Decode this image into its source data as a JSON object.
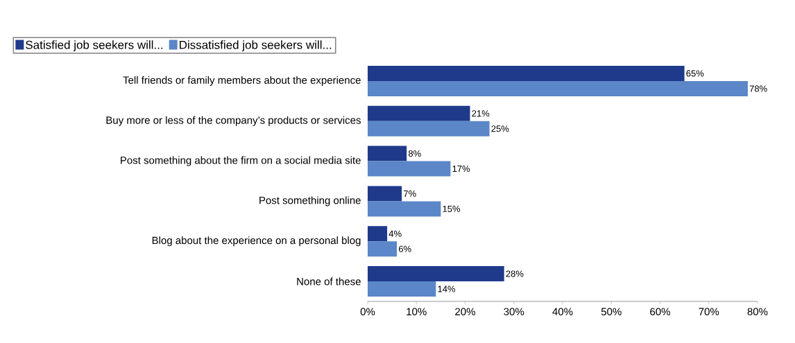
{
  "chart_data": {
    "type": "bar",
    "orientation": "horizontal",
    "legend": "top left",
    "categories": [
      "Tell friends or family members about the experience",
      "Buy more or less of the company’s products or services",
      "Post something about the firm on a social media site",
      "Post something online",
      "Blog about the experience on a personal blog",
      "None of these"
    ],
    "series": [
      {
        "name": "Satisfied job seekers will...",
        "color": "#1f3a8a",
        "values": [
          65,
          21,
          8,
          7,
          4,
          28
        ],
        "value_labels": [
          "65%",
          "21%",
          "8%",
          "7%",
          "4%",
          "28%"
        ]
      },
      {
        "name": "Dissatisfied job seekers will...",
        "color": "#5b87c8",
        "values": [
          78,
          25,
          17,
          15,
          6,
          14
        ],
        "value_labels": [
          "78%",
          "25%",
          "17%",
          "15%",
          "6%",
          "14%"
        ]
      }
    ],
    "xlim": [
      0,
      80
    ],
    "xticks": [
      {
        "value": 0,
        "label": "0%"
      },
      {
        "value": 10,
        "label": "10%"
      },
      {
        "value": 20,
        "label": "20%"
      },
      {
        "value": 30,
        "label": "30%"
      },
      {
        "value": 40,
        "label": "40%"
      },
      {
        "value": 50,
        "label": "50%"
      },
      {
        "value": 60,
        "label": "60%"
      },
      {
        "value": 70,
        "label": "70%"
      },
      {
        "value": 80,
        "label": "80%"
      }
    ]
  }
}
